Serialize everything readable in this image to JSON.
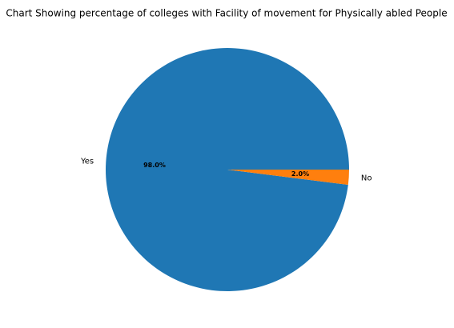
{
  "chart_data": {
    "type": "pie",
    "title": "Chart Showing percentage of colleges with Facility of movement for Physically abled People",
    "categories": [
      "Yes",
      "No"
    ],
    "values": [
      98.0,
      2.0
    ],
    "percent_labels": [
      "98.0%",
      "2.0%"
    ],
    "colors": [
      "#1f77b4",
      "#ff7f0e"
    ],
    "legend": "none"
  }
}
